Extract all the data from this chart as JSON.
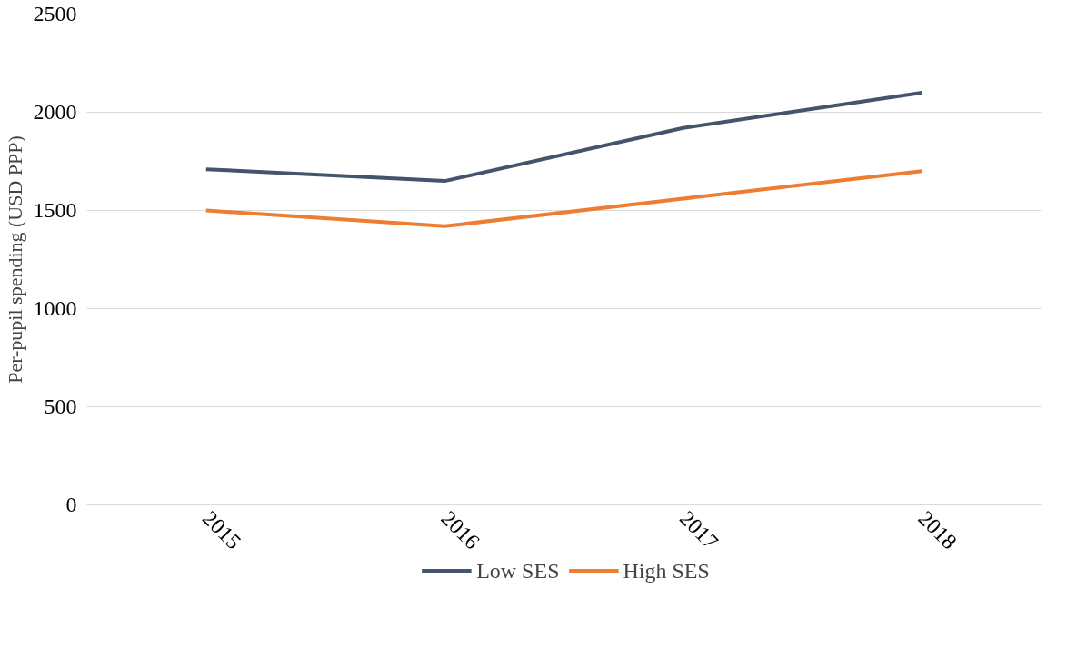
{
  "chart_data": {
    "type": "line",
    "ylabel": "Per-pupil spending (USD PPP)",
    "categories": [
      "2015",
      "2016",
      "2017",
      "2018"
    ],
    "series": [
      {
        "name": "Low SES",
        "color": "#44546a",
        "values": [
          1710,
          1650,
          1920,
          2100
        ]
      },
      {
        "name": "High SES",
        "color": "#ed7d31",
        "values": [
          1500,
          1420,
          1560,
          1700
        ]
      }
    ],
    "ylim": [
      0,
      2500
    ],
    "yticks": [
      0,
      500,
      1000,
      1500,
      2000,
      2500
    ],
    "grid": "y",
    "legend": "bottom",
    "line_style": "solid"
  }
}
